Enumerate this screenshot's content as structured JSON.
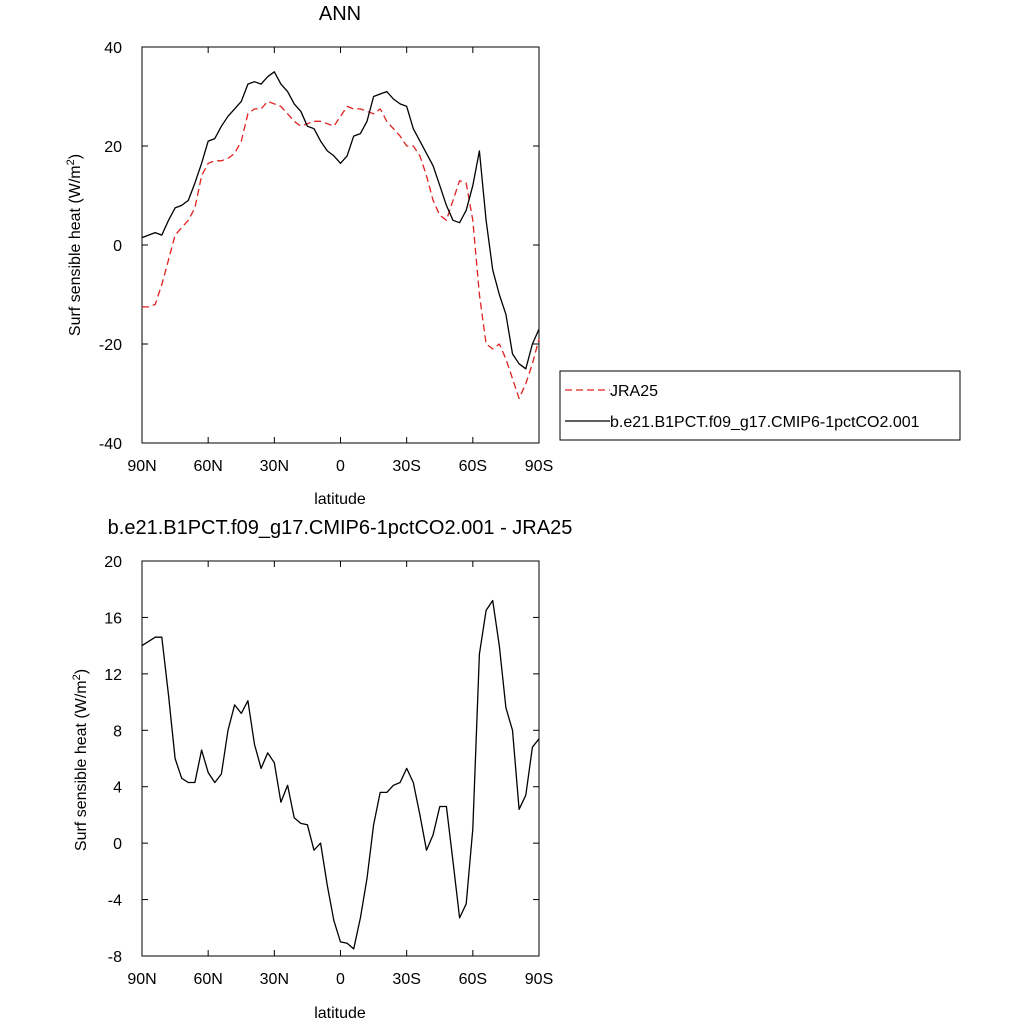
{
  "chart_data": [
    {
      "type": "line",
      "title": "ANN",
      "xlabel": "latitude",
      "ylabel": "Surf sensible heat (W/m",
      "ylabel_sup": "2",
      "ylabel_close": ")",
      "x_ticks": [
        "90N",
        "60N",
        "30N",
        "0",
        "30S",
        "60S",
        "90S"
      ],
      "y_ticks": [
        "40",
        "20",
        "0",
        "-20",
        "-40"
      ],
      "ylim": [
        -40,
        40
      ],
      "xlim": [
        90,
        -90
      ],
      "legend_position": "right",
      "series": [
        {
          "name": "JRA25",
          "color": "#e0211f",
          "dash": "dashed",
          "x": [
            90,
            87,
            84,
            81,
            78,
            75,
            72,
            69,
            66,
            63,
            60,
            57,
            54,
            51,
            48,
            45,
            42,
            39,
            36,
            33,
            30,
            27,
            24,
            21,
            18,
            15,
            12,
            9,
            6,
            3,
            0,
            -3,
            -6,
            -9,
            -12,
            -15,
            -18,
            -21,
            -24,
            -27,
            -30,
            -33,
            -36,
            -39,
            -42,
            -45,
            -48,
            -51,
            -54,
            -57,
            -60,
            -63,
            -66,
            -69,
            -72,
            -75,
            -78,
            -81,
            -84,
            -87,
            -90
          ],
          "y": [
            -12.5,
            -12.5,
            -12,
            -8,
            -3,
            2,
            3.5,
            5,
            7.5,
            14,
            16.5,
            17,
            17,
            17.5,
            18.5,
            21,
            26.5,
            27.5,
            27.5,
            29,
            28.5,
            28,
            26.5,
            25,
            24,
            24.5,
            25,
            25,
            24.5,
            24,
            26,
            28,
            27.5,
            27.5,
            27,
            26.5,
            27.5,
            25,
            23.5,
            22,
            20,
            20,
            18,
            14,
            9,
            6,
            5,
            9,
            13,
            12.5,
            5,
            -10,
            -20,
            -21,
            -20,
            -23,
            -27,
            -31,
            -28,
            -24,
            -19
          ]
        },
        {
          "name": "b.e21.B1PCT.f09_g17.CMIP6-1pctCO2.001",
          "color": "#000000",
          "dash": "solid",
          "x": [
            90,
            87,
            84,
            81,
            78,
            75,
            72,
            69,
            66,
            63,
            60,
            57,
            54,
            51,
            48,
            45,
            42,
            39,
            36,
            33,
            30,
            27,
            24,
            21,
            18,
            15,
            12,
            9,
            6,
            3,
            0,
            -3,
            -6,
            -9,
            -12,
            -15,
            -18,
            -21,
            -24,
            -27,
            -30,
            -33,
            -36,
            -39,
            -42,
            -45,
            -48,
            -51,
            -54,
            -57,
            -60,
            -63,
            -66,
            -69,
            -72,
            -75,
            -78,
            -81,
            -84,
            -87,
            -90
          ],
          "y": [
            1.5,
            2,
            2.5,
            2,
            5,
            7.5,
            8,
            9,
            12.5,
            16.5,
            21,
            21.5,
            24,
            26,
            27.5,
            29,
            32.5,
            33,
            32.5,
            34,
            35,
            32.5,
            31,
            28.5,
            27,
            24,
            23.5,
            21,
            19,
            18,
            16.5,
            18,
            22,
            22.5,
            25,
            30,
            30.5,
            31,
            29.5,
            28.5,
            28,
            23.5,
            21,
            18.5,
            16,
            12,
            8,
            5,
            4.5,
            7,
            12,
            19,
            5,
            -5,
            -10,
            -14,
            -22,
            -24,
            -25,
            -20,
            -17
          ]
        }
      ]
    },
    {
      "type": "line",
      "title": "b.e21.B1PCT.f09_g17.CMIP6-1pctCO2.001 - JRA25",
      "xlabel": "latitude",
      "ylabel": "Surf sensible heat (W/m",
      "ylabel_sup": "2",
      "ylabel_close": ")",
      "x_ticks": [
        "90N",
        "60N",
        "30N",
        "0",
        "30S",
        "60S",
        "90S"
      ],
      "y_ticks": [
        "20",
        "16",
        "12",
        "8",
        "4",
        "0",
        "-4",
        "-8"
      ],
      "ylim": [
        -8,
        20
      ],
      "xlim": [
        90,
        -90
      ],
      "series": [
        {
          "color": "#000000",
          "dash": "solid",
          "x": [
            90,
            87,
            84,
            81,
            78,
            75,
            72,
            69,
            66,
            63,
            60,
            57,
            54,
            51,
            48,
            45,
            42,
            39,
            36,
            33,
            30,
            27,
            24,
            21,
            18,
            15,
            12,
            9,
            6,
            3,
            0,
            -3,
            -6,
            -9,
            -12,
            -15,
            -18,
            -21,
            -24,
            -27,
            -30,
            -33,
            -36,
            -39,
            -42,
            -45,
            -48,
            -51,
            -54,
            -57,
            -60,
            -63,
            -66,
            -69,
            -72,
            -75,
            -78,
            -81,
            -84,
            -87,
            -90
          ],
          "y": [
            14,
            14.3,
            14.6,
            14.6,
            10.5,
            6,
            4.6,
            4.3,
            4.3,
            6.6,
            5,
            4.3,
            4.9,
            8,
            9.8,
            9.2,
            10.1,
            7,
            5.3,
            6.4,
            5.7,
            2.9,
            4.1,
            1.8,
            1.4,
            1.3,
            -0.5,
            0,
            -3,
            -5.5,
            -7,
            -7.1,
            -7.5,
            -5.3,
            -2.5,
            1.3,
            3.6,
            3.6,
            4.1,
            4.3,
            5.3,
            4.3,
            2,
            -0.5,
            0.6,
            2.6,
            2.6,
            -1.3,
            -5.3,
            -4.3,
            1,
            13.4,
            16.5,
            17.2,
            14,
            9.6,
            8,
            2.4,
            3.4,
            6.8,
            7.4
          ]
        }
      ]
    }
  ],
  "legend": {
    "entries": [
      {
        "label": "JRA25",
        "color": "#e0211f",
        "dash": "dashed"
      },
      {
        "label": "b.e21.B1PCT.f09_g17.CMIP6-1pctCO2.001",
        "color": "#000000",
        "dash": "solid"
      }
    ]
  }
}
